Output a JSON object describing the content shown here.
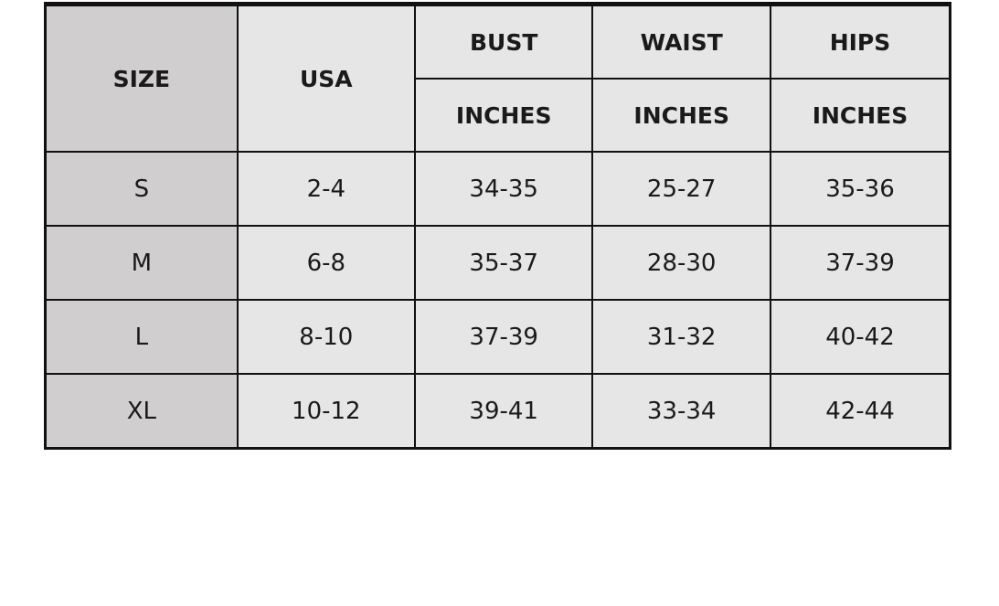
{
  "header": {
    "size": "SIZE",
    "usa": "USA",
    "groups": [
      "BUST",
      "WAIST",
      "HIPS"
    ],
    "units": [
      "INCHES",
      "INCHES",
      "INCHES"
    ]
  },
  "rows": [
    {
      "size": "S",
      "usa": "2-4",
      "bust": "34-35",
      "waist": "25-27",
      "hips": "35-36"
    },
    {
      "size": "M",
      "usa": "6-8",
      "bust": "35-37",
      "waist": "28-30",
      "hips": "37-39"
    },
    {
      "size": "L",
      "usa": "8-10",
      "bust": "37-39",
      "waist": "31-32",
      "hips": "40-42"
    },
    {
      "size": "XL",
      "usa": "10-12",
      "bust": "39-41",
      "waist": "33-34",
      "hips": "42-44"
    }
  ],
  "colors": {
    "size_column": "#d0cecf",
    "cells": "#e6e6e6",
    "border": "#111111"
  }
}
